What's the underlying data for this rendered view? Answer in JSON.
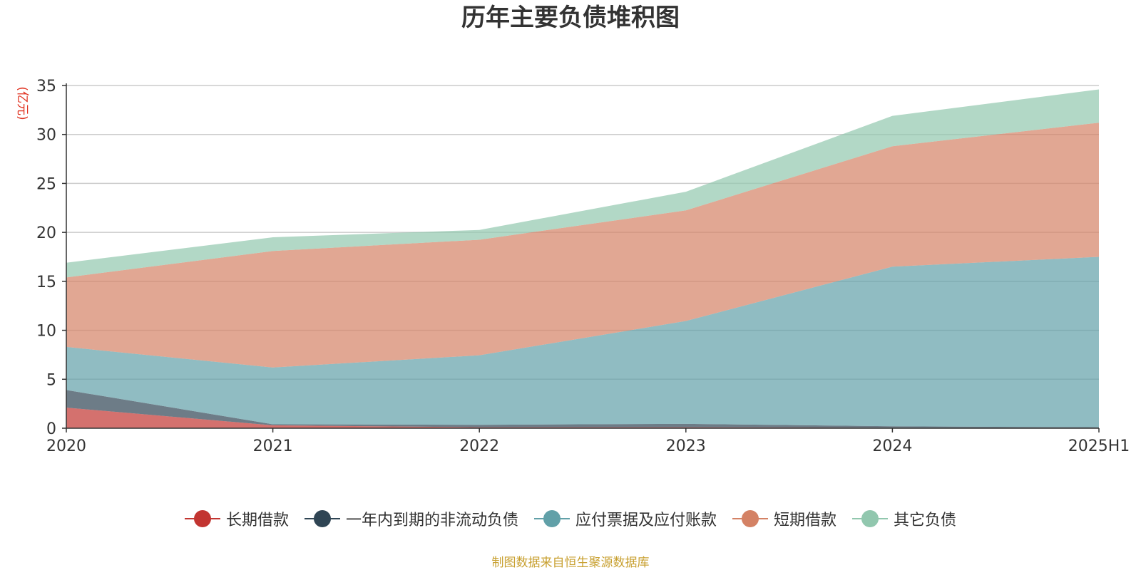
{
  "chart_data": {
    "type": "area",
    "stacked": true,
    "title": "历年主要负债堆积图",
    "ylabel": "(亿元)",
    "xlabel": "",
    "categories": [
      "2020",
      "2021",
      "2022",
      "2023",
      "2024",
      "2025H1"
    ],
    "ylim": [
      0,
      35
    ],
    "yticks": [
      0,
      5,
      10,
      15,
      20,
      25,
      30,
      35
    ],
    "grid": true,
    "legend_position": "bottom",
    "series": [
      {
        "name": "长期借款",
        "color": "#c23531",
        "values": [
          2.1,
          0.3,
          0.1,
          0.1,
          0.05,
          0.0
        ]
      },
      {
        "name": "一年内到期的非流动负债",
        "color": "#2f4554",
        "values": [
          1.8,
          0.1,
          0.25,
          0.35,
          0.15,
          0.1
        ]
      },
      {
        "name": "应付票据及应付账款",
        "color": "#61a0a8",
        "values": [
          4.4,
          5.8,
          7.1,
          10.5,
          16.3,
          17.4
        ]
      },
      {
        "name": "短期借款",
        "color": "#d48265",
        "values": [
          7.1,
          11.9,
          11.8,
          11.3,
          12.3,
          13.7
        ]
      },
      {
        "name": "其它负债",
        "color": "#91c7ae",
        "values": [
          1.5,
          1.4,
          1.0,
          1.9,
          3.1,
          3.4
        ]
      }
    ]
  },
  "source_note": "制图数据来自恒生聚源数据库"
}
